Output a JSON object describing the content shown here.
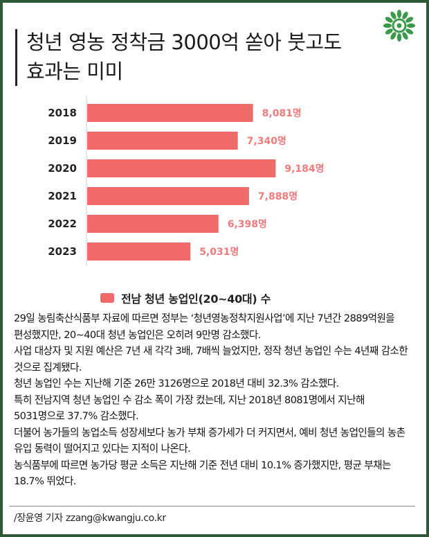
{
  "title": "청년 영농 정착금 3000억 쏟아 붓고도\n효과는 미미",
  "legend_label": "전남 청년 농업인(20~40대) 수",
  "colors": {
    "bar": "#f06a6a",
    "frame": "#2e5a38",
    "logo": "#3a9a4a"
  },
  "logo_icon": "green-wreath-logo-icon",
  "chart_data": {
    "type": "bar",
    "orientation": "horizontal",
    "categories": [
      "2018",
      "2019",
      "2020",
      "2021",
      "2022",
      "2023"
    ],
    "values": [
      8081,
      7340,
      9184,
      7888,
      6398,
      5031
    ],
    "value_labels": [
      "8,081명",
      "7,340명",
      "9,184명",
      "7,888명",
      "6,398명",
      "5,031명"
    ],
    "series": [
      {
        "name": "전남 청년 농업인(20~40대) 수",
        "values": [
          8081,
          7340,
          9184,
          7888,
          6398,
          5031
        ]
      }
    ],
    "xlim": [
      0,
      14500
    ],
    "grid": false,
    "legend": "bottom"
  },
  "paragraphs": [
    "29일 농림축산식품부 자료에 따르면 정부는 ‘청년영농정착지원사업’에 지난 7년간 2889억원을 편성했지만, 20~40대 청년 농업인은 오히려 9만명 감소했다.",
    "사업 대상자 및 지원 예산은 7년 새 각각 3배, 7배씩 늘었지만, 정작 청년 농업인 수는 4년째 감소한 것으로 집계됐다.",
    "청년 농업인 수는 지난해 기준 26만 3126명으로 2018년 대비 32.3% 감소했다.",
    "특히 전남지역 청년 농업인 수 감소 폭이 가장 컸는데, 지난 2018년 8081명에서 지난해 5031명으로 37.7% 감소했다.",
    "더불어 농가들의 농업소득 성장세보다 농가 부채 증가세가 더 커지면서, 예비 청년 농업인들의 농촌 유입 동력이 떨어지고 있다는 지적이 나온다.",
    "농식품부에 따르면 농가당 평균 소득은 지난해 기준 전년 대비 10.1% 증가했지만, 평균 부채는 18.7% 뛰었다."
  ],
  "byline": "/장윤영 기자 zzang@kwangju.co.kr"
}
